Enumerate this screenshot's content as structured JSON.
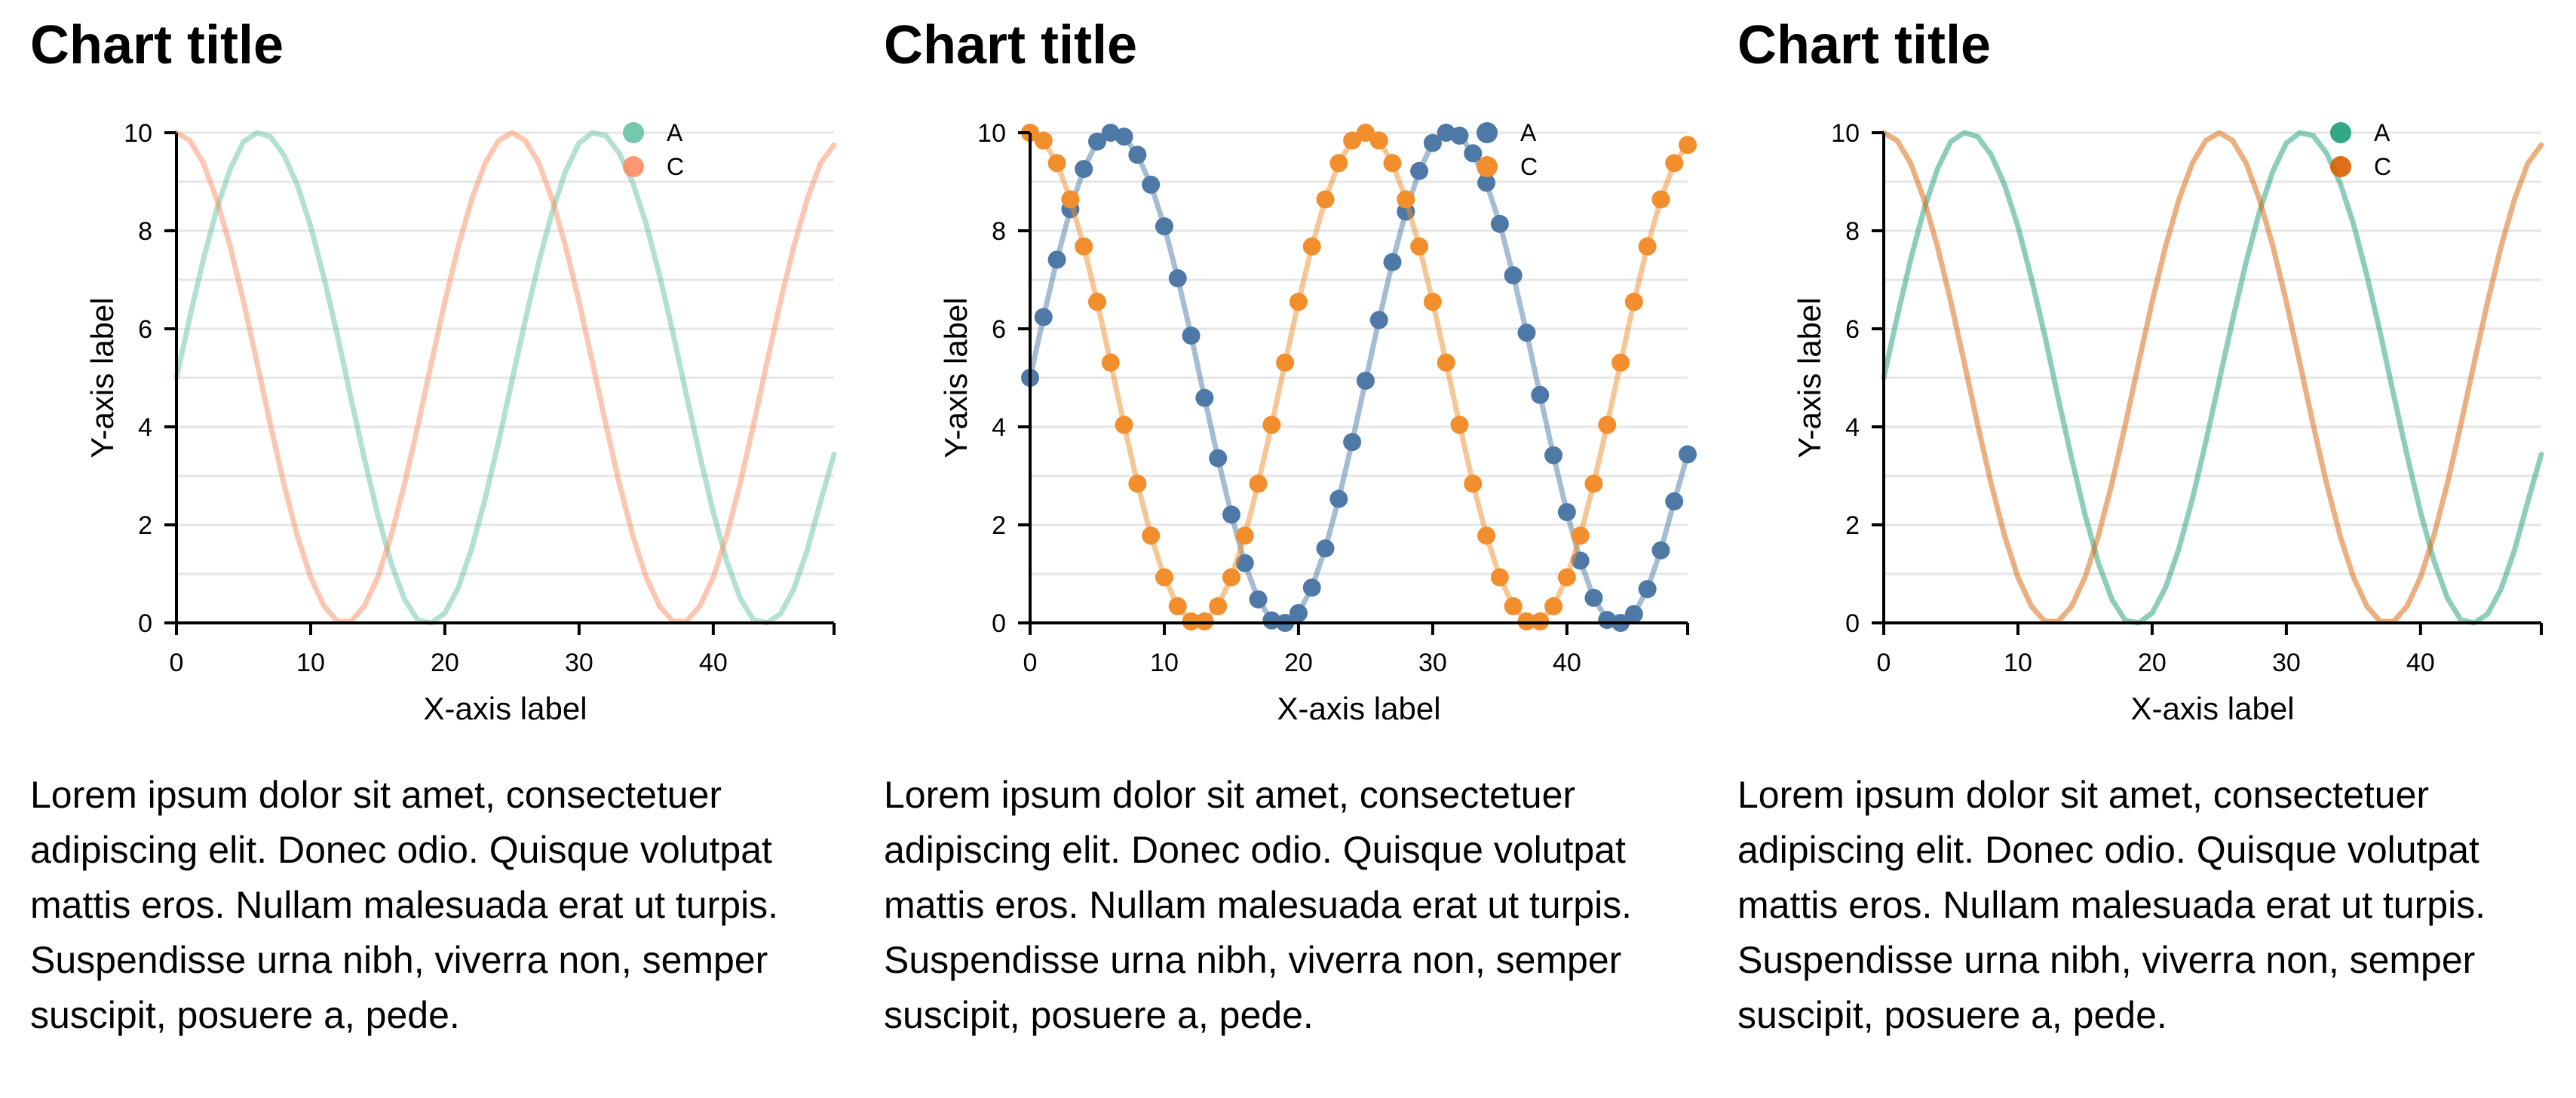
{
  "panels": [
    {
      "title": "Chart title",
      "caption": "Lorem ipsum dolor sit amet, consectetuer adipiscing elit. Donec odio. Quisque volutpat mattis eros. Nullam malesuada erat ut turpis. Suspendisse urna nibh, viverra non, semper suscipit, posuere a, pede."
    },
    {
      "title": "Chart title",
      "caption": "Lorem ipsum dolor sit amet, consectetuer adipiscing elit. Donec odio. Quisque volutpat mattis eros. Nullam malesuada erat ut turpis. Suspendisse urna nibh, viverra non, semper suscipit, posuere a, pede."
    },
    {
      "title": "Chart title",
      "caption": "Lorem ipsum dolor sit amet, consectetuer adipiscing elit. Donec odio. Quisque volutpat mattis eros. Nullam malesuada erat ut turpis. Suspendisse urna nibh, viverra non, semper suscipit, posuere a, pede."
    }
  ],
  "chart_data": [
    {
      "type": "line",
      "title": "Chart title",
      "xlabel": "X-axis label",
      "ylabel": "Y-axis label",
      "xlim": [
        0,
        49
      ],
      "ylim": [
        0,
        10
      ],
      "x_ticks": [
        0,
        10,
        20,
        30,
        40
      ],
      "y_ticks": [
        0,
        2,
        4,
        6,
        8,
        10
      ],
      "grid": "horizontal",
      "legend": "top-right",
      "markers": false,
      "x": [
        0,
        1,
        2,
        3,
        4,
        5,
        6,
        7,
        8,
        9,
        10,
        11,
        12,
        13,
        14,
        15,
        16,
        17,
        18,
        19,
        20,
        21,
        22,
        23,
        24,
        25,
        26,
        27,
        28,
        29,
        30,
        31,
        32,
        33,
        34,
        35,
        36,
        37,
        38,
        39,
        40,
        41,
        42,
        43,
        44,
        45,
        46,
        47,
        48,
        49
      ],
      "series": [
        {
          "name": "A",
          "color": "#66c2a5",
          "opacity": 0.5,
          "values": [
            5.0,
            6.24,
            7.41,
            8.44,
            9.26,
            9.82,
            10.0,
            9.92,
            9.55,
            8.94,
            8.09,
            7.03,
            5.86,
            4.59,
            3.36,
            2.21,
            1.22,
            0.48,
            0.05,
            0.0,
            0.2,
            0.72,
            1.52,
            2.53,
            3.69,
            4.94,
            6.18,
            7.36,
            8.39,
            9.22,
            9.79,
            10.0,
            9.94,
            9.58,
            8.98,
            8.14,
            7.09,
            5.92,
            4.65,
            3.42,
            2.26,
            1.27,
            0.51,
            0.06,
            0.0,
            0.18,
            0.69,
            1.48,
            2.48,
            3.44
          ]
        },
        {
          "name": "C",
          "color": "#fc8d62",
          "opacity": 0.5,
          "values": [
            10.0,
            9.84,
            9.38,
            8.64,
            7.68,
            6.55,
            5.31,
            4.04,
            2.84,
            1.78,
            0.93,
            0.34,
            0.03,
            0.03,
            0.34,
            0.93,
            1.78,
            2.84,
            4.04,
            5.31,
            6.55,
            7.68,
            8.64,
            9.38,
            9.84,
            10.0,
            9.84,
            9.38,
            8.64,
            7.68,
            6.55,
            5.31,
            4.04,
            2.84,
            1.78,
            0.93,
            0.34,
            0.03,
            0.03,
            0.34,
            0.93,
            1.78,
            2.84,
            4.04,
            5.31,
            6.55,
            7.68,
            8.64,
            9.38,
            9.75
          ]
        }
      ]
    },
    {
      "type": "line",
      "title": "Chart title",
      "xlabel": "X-axis label",
      "ylabel": "Y-axis label",
      "xlim": [
        0,
        49
      ],
      "ylim": [
        0,
        10
      ],
      "x_ticks": [
        0,
        10,
        20,
        30,
        40
      ],
      "y_ticks": [
        0,
        2,
        4,
        6,
        8,
        10
      ],
      "grid": "horizontal",
      "legend": "top-right",
      "markers": true,
      "x": [
        0,
        1,
        2,
        3,
        4,
        5,
        6,
        7,
        8,
        9,
        10,
        11,
        12,
        13,
        14,
        15,
        16,
        17,
        18,
        19,
        20,
        21,
        22,
        23,
        24,
        25,
        26,
        27,
        28,
        29,
        30,
        31,
        32,
        33,
        34,
        35,
        36,
        37,
        38,
        39,
        40,
        41,
        42,
        43,
        44,
        45,
        46,
        47,
        48,
        49
      ],
      "series": [
        {
          "name": "A",
          "color": "#4e79a7",
          "opacity": 1,
          "values": [
            5.0,
            6.24,
            7.41,
            8.44,
            9.26,
            9.82,
            10.0,
            9.92,
            9.55,
            8.94,
            8.09,
            7.03,
            5.86,
            4.59,
            3.36,
            2.21,
            1.22,
            0.48,
            0.05,
            0.0,
            0.2,
            0.72,
            1.52,
            2.53,
            3.69,
            4.94,
            6.18,
            7.36,
            8.39,
            9.22,
            9.79,
            10.0,
            9.94,
            9.58,
            8.98,
            8.14,
            7.09,
            5.92,
            4.65,
            3.42,
            2.26,
            1.27,
            0.51,
            0.06,
            0.0,
            0.18,
            0.69,
            1.48,
            2.48,
            3.44
          ]
        },
        {
          "name": "C",
          "color": "#f28e2b",
          "opacity": 1,
          "values": [
            10.0,
            9.84,
            9.38,
            8.64,
            7.68,
            6.55,
            5.31,
            4.04,
            2.84,
            1.78,
            0.93,
            0.34,
            0.03,
            0.03,
            0.34,
            0.93,
            1.78,
            2.84,
            4.04,
            5.31,
            6.55,
            7.68,
            8.64,
            9.38,
            9.84,
            10.0,
            9.84,
            9.38,
            8.64,
            7.68,
            6.55,
            5.31,
            4.04,
            2.84,
            1.78,
            0.93,
            0.34,
            0.03,
            0.03,
            0.34,
            0.93,
            1.78,
            2.84,
            4.04,
            5.31,
            6.55,
            7.68,
            8.64,
            9.38,
            9.75
          ]
        }
      ]
    },
    {
      "type": "line",
      "title": "Chart title",
      "xlabel": "X-axis label",
      "ylabel": "Y-axis label",
      "xlim": [
        0,
        49
      ],
      "ylim": [
        0,
        10
      ],
      "x_ticks": [
        0,
        10,
        20,
        30,
        40
      ],
      "y_ticks": [
        0,
        2,
        4,
        6,
        8,
        10
      ],
      "grid": "horizontal",
      "legend": "top-right",
      "markers": false,
      "x": [
        0,
        1,
        2,
        3,
        4,
        5,
        6,
        7,
        8,
        9,
        10,
        11,
        12,
        13,
        14,
        15,
        16,
        17,
        18,
        19,
        20,
        21,
        22,
        23,
        24,
        25,
        26,
        27,
        28,
        29,
        30,
        31,
        32,
        33,
        34,
        35,
        36,
        37,
        38,
        39,
        40,
        41,
        42,
        43,
        44,
        45,
        46,
        47,
        48,
        49
      ],
      "series": [
        {
          "name": "A",
          "color": "#1b9e77",
          "opacity": 0.5,
          "values": [
            5.0,
            6.24,
            7.41,
            8.44,
            9.26,
            9.82,
            10.0,
            9.92,
            9.55,
            8.94,
            8.09,
            7.03,
            5.86,
            4.59,
            3.36,
            2.21,
            1.22,
            0.48,
            0.05,
            0.0,
            0.2,
            0.72,
            1.52,
            2.53,
            3.69,
            4.94,
            6.18,
            7.36,
            8.39,
            9.22,
            9.79,
            10.0,
            9.94,
            9.58,
            8.98,
            8.14,
            7.09,
            5.92,
            4.65,
            3.42,
            2.26,
            1.27,
            0.51,
            0.06,
            0.0,
            0.18,
            0.69,
            1.48,
            2.48,
            3.44
          ]
        },
        {
          "name": "C",
          "color": "#d95f02",
          "opacity": 0.5,
          "values": [
            10.0,
            9.84,
            9.38,
            8.64,
            7.68,
            6.55,
            5.31,
            4.04,
            2.84,
            1.78,
            0.93,
            0.34,
            0.03,
            0.03,
            0.34,
            0.93,
            1.78,
            2.84,
            4.04,
            5.31,
            6.55,
            7.68,
            8.64,
            9.38,
            9.84,
            10.0,
            9.84,
            9.38,
            8.64,
            7.68,
            6.55,
            5.31,
            4.04,
            2.84,
            1.78,
            0.93,
            0.34,
            0.03,
            0.03,
            0.34,
            0.93,
            1.78,
            2.84,
            4.04,
            5.31,
            6.55,
            7.68,
            8.64,
            9.38,
            9.75
          ]
        }
      ]
    }
  ]
}
